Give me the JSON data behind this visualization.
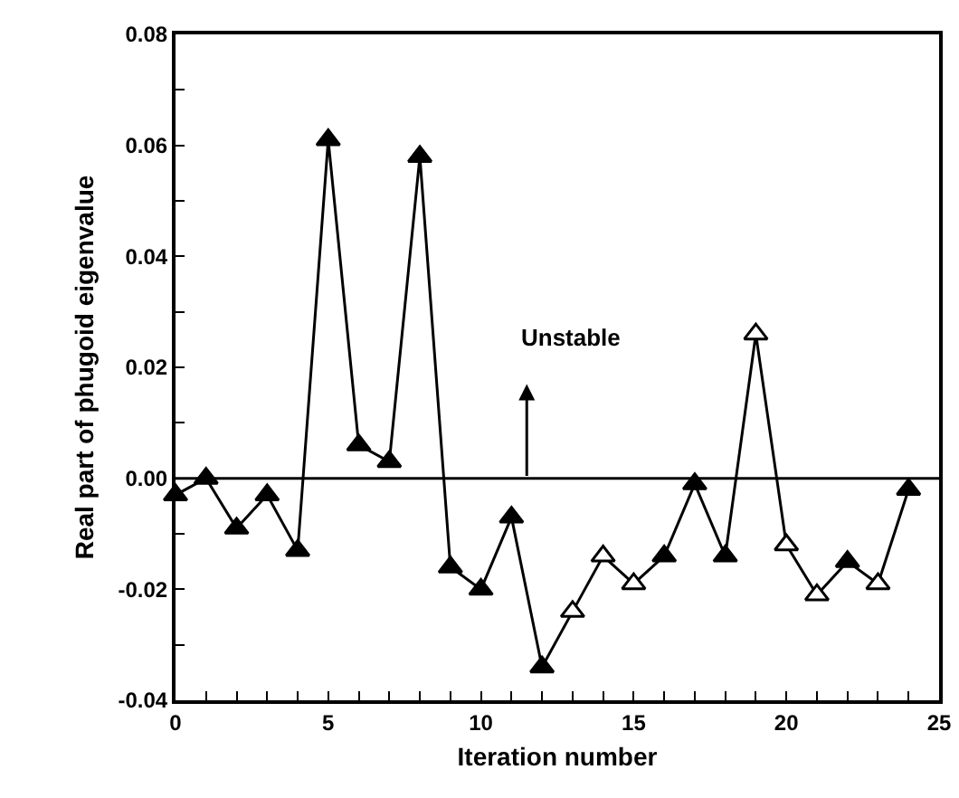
{
  "chart_data": {
    "type": "line",
    "xlabel": "Iteration number",
    "ylabel": "Real part of phugoid eigenvalue",
    "x": [
      0,
      1,
      2,
      3,
      4,
      5,
      6,
      7,
      8,
      9,
      10,
      11,
      12,
      13,
      14,
      15,
      16,
      17,
      18,
      19,
      20,
      21,
      22,
      23,
      24
    ],
    "series": [
      {
        "color": "#000000",
        "values": [
          -0.003,
          0.0,
          -0.009,
          -0.003,
          -0.013,
          0.061,
          0.006,
          0.003,
          0.058,
          -0.016,
          -0.02,
          -0.007,
          -0.034,
          -0.024,
          -0.014,
          -0.019,
          -0.014,
          -0.001,
          -0.014,
          0.026,
          -0.012,
          -0.021,
          -0.015,
          -0.019,
          -0.002
        ],
        "colors": [
          "#000000",
          "#000000",
          "#000000",
          "#000000",
          "#000000",
          "#000000",
          "#000000",
          "#000000",
          "#000000",
          "#000000",
          "#000000",
          "#000000",
          "#000000",
          "#ffffff",
          "#ffffff",
          "#ffffff",
          "#000000",
          "#000000",
          "#000000",
          "#ffffff",
          "#ffffff",
          "#ffffff",
          "#000000",
          "#ffffff",
          "#000000"
        ]
      }
    ],
    "marker": "triangle",
    "line_style": "solid",
    "grid": false,
    "legend": false,
    "xlim": [
      0,
      25
    ],
    "xticks": [
      0,
      {
        "value": 1,
        "label": null
      },
      {
        "value": 2,
        "label": null
      },
      {
        "value": 3,
        "label": null
      },
      {
        "value": 4,
        "label": null
      },
      5,
      {
        "value": 6,
        "label": null
      },
      {
        "value": 7,
        "label": null
      },
      {
        "value": 8,
        "label": null
      },
      {
        "value": 9,
        "label": null
      },
      10,
      {
        "value": 11,
        "label": null
      },
      {
        "value": 12,
        "label": null
      },
      {
        "value": 13,
        "label": null
      },
      {
        "value": 14,
        "label": null
      },
      15,
      {
        "value": 16,
        "label": null
      },
      {
        "value": 17,
        "label": null
      },
      {
        "value": 18,
        "label": null
      },
      {
        "value": 19,
        "label": null
      },
      20,
      {
        "value": 21,
        "label": null
      },
      {
        "value": 22,
        "label": null
      },
      {
        "value": 23,
        "label": null
      },
      {
        "value": 24,
        "label": null
      },
      25
    ],
    "ylim": [
      -0.04,
      0.08
    ],
    "yticks": [
      {
        "value": -0.04,
        "label": "-0.04"
      },
      {
        "value": -0.03,
        "label": null
      },
      {
        "value": -0.02,
        "label": "-0.02"
      },
      {
        "value": -0.01,
        "label": null
      },
      {
        "value": 0,
        "label": "0.00"
      },
      {
        "value": 0.01,
        "label": null
      },
      {
        "value": 0.02,
        "label": "0.02"
      },
      {
        "value": 0.03,
        "label": null
      },
      {
        "value": 0.04,
        "label": "0.04"
      },
      {
        "value": 0.05,
        "label": null
      },
      {
        "value": 0.06,
        "label": "0.06"
      },
      {
        "value": 0.07,
        "label": null
      },
      {
        "value": 0.08,
        "label": "0.08"
      }
    ],
    "ref_lines": [
      {
        "axis": "y",
        "value": 0,
        "color": "#000000",
        "line_style": "solid"
      }
    ],
    "annotations": [
      "Unstable"
    ]
  }
}
